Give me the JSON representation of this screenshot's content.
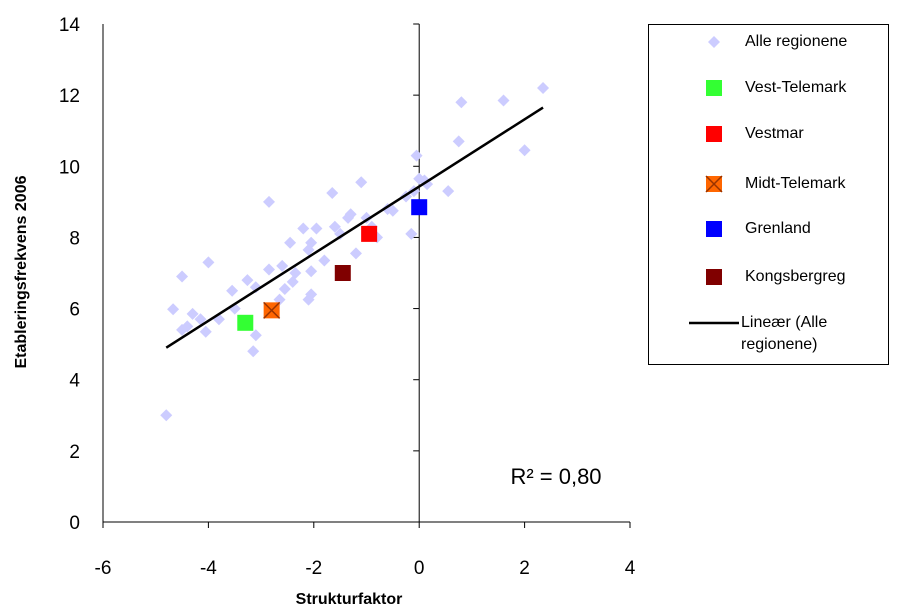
{
  "chart_data": {
    "type": "scatter",
    "xlabel": "Strukturfaktor",
    "ylabel": "Etableringsfrekvens 2006",
    "annotation": "R² = 0,80",
    "xlim": [
      -6,
      4
    ],
    "xticks": [
      -6,
      -4,
      -2,
      0,
      2,
      4
    ],
    "ylim": [
      0,
      14
    ],
    "yticks": [
      0,
      2,
      4,
      6,
      8,
      10,
      12,
      14
    ],
    "legend": "right",
    "series": [
      {
        "name": "Alle regionene",
        "color": "#ccccff",
        "marker": "diamond",
        "x": [
          -4.8,
          -4.67,
          -4.5,
          -4.0,
          -3.55,
          -3.26,
          -3.1,
          -2.85,
          -3.1,
          -3.15,
          -4.3,
          -4.5,
          -4.4,
          -4.15,
          -4.05,
          -3.8,
          -3.5,
          -2.85,
          -2.6,
          -2.45,
          -2.4,
          -2.35,
          -2.65,
          -2.55,
          -2.2,
          -2.1,
          -2.05,
          -1.95,
          -2.05,
          -2.05,
          -2.1,
          -1.8,
          -1.65,
          -1.6,
          -1.5,
          -1.35,
          -1.3,
          -1.1,
          -1.0,
          -1.2,
          -0.8,
          -0.9,
          -0.6,
          -0.5,
          -0.25,
          -0.1,
          -0.15,
          -0.05,
          0.0,
          0.1,
          0.15,
          0.55,
          0.75,
          0.8,
          1.6,
          2.0,
          2.35
        ],
        "values": [
          3.0,
          5.98,
          6.9,
          7.3,
          6.5,
          6.8,
          6.6,
          9.0,
          5.25,
          4.8,
          5.85,
          5.4,
          5.5,
          5.7,
          5.35,
          5.7,
          6.0,
          7.1,
          7.2,
          7.85,
          6.75,
          7.0,
          6.25,
          6.55,
          8.25,
          7.65,
          7.85,
          8.25,
          7.05,
          6.4,
          6.25,
          7.35,
          9.25,
          8.3,
          8.1,
          8.55,
          8.65,
          9.55,
          8.55,
          7.55,
          8.0,
          8.3,
          8.8,
          8.75,
          9.15,
          9.3,
          8.1,
          10.3,
          9.65,
          9.6,
          9.5,
          9.3,
          10.7,
          11.8,
          11.85,
          10.45,
          12.2
        ]
      },
      {
        "name": "Vest-Telemark",
        "color": "#33ff33",
        "marker": "square",
        "x": [
          -3.3
        ],
        "values": [
          5.6
        ]
      },
      {
        "name": "Vestmar",
        "color": "#ff0000",
        "marker": "square",
        "x": [
          -0.95
        ],
        "values": [
          8.1
        ]
      },
      {
        "name": "Midt-Telemark",
        "color": "#ff6600",
        "marker": "square-x",
        "x": [
          -2.8
        ],
        "values": [
          5.95
        ]
      },
      {
        "name": "Grenland",
        "color": "#0000ff",
        "marker": "square",
        "x": [
          0.0
        ],
        "values": [
          8.85
        ]
      },
      {
        "name": "Kongsbergreg",
        "color": "#800000",
        "marker": "square",
        "x": [
          -1.45
        ],
        "values": [
          7.0
        ]
      },
      {
        "name": "Lineær (Alle regionene)",
        "color": "#000000",
        "marker": "line",
        "x": [
          -4.8,
          2.35
        ],
        "values": [
          4.9,
          11.65
        ]
      }
    ]
  }
}
